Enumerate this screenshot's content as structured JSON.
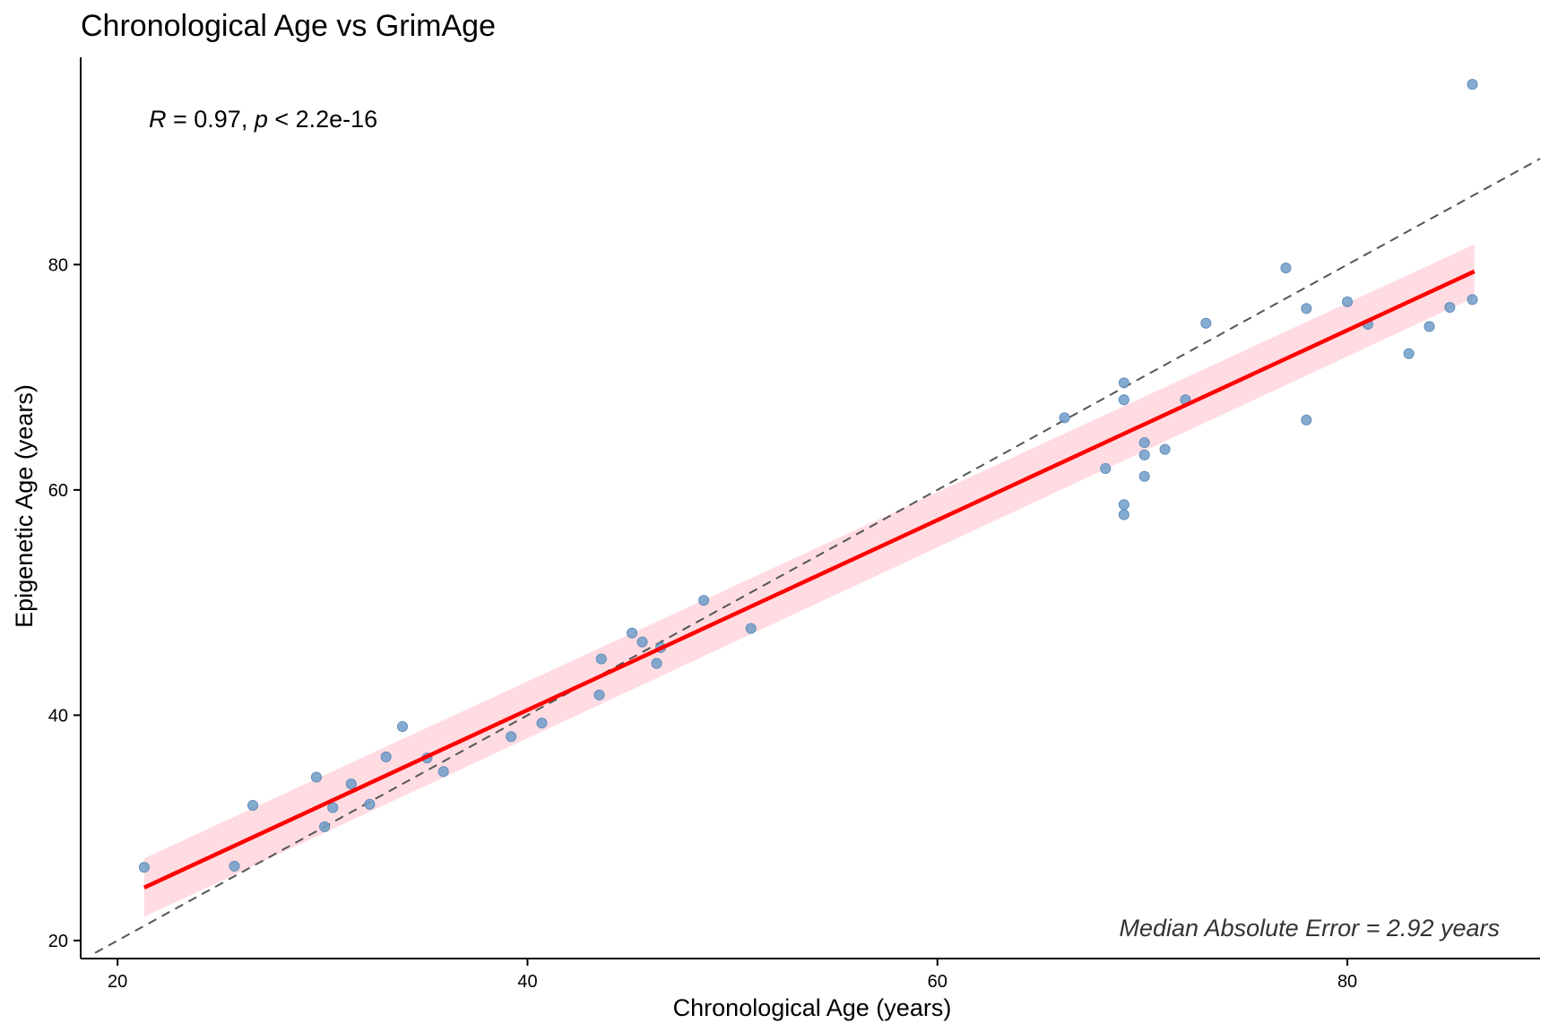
{
  "chart_data": {
    "type": "scatter",
    "title": "Chronological Age vs GrimAge",
    "xlabel": "Chronological Age (years)",
    "ylabel": "Epigenetic Age (years)",
    "xlim": [
      18.2,
      89.4
    ],
    "ylim": [
      18.4,
      98.4
    ],
    "xticks": [
      20,
      40,
      60,
      80
    ],
    "yticks": [
      20,
      40,
      60,
      80
    ],
    "grid": false,
    "legend": "none",
    "colors": {
      "points": "#6f9cc8",
      "regression": "#ff0000",
      "confidence_band": "#ffc0cb",
      "identity": "#555555"
    },
    "annotations": {
      "correlation": {
        "r_label": "R",
        "r_text": " = 0.97, ",
        "p_label": "p",
        "p_text": " < 2.2e-16"
      },
      "mae": "Median Absolute Error = 2.92 years"
    },
    "regression_line": {
      "x": [
        21.3,
        86.2
      ],
      "y": [
        24.7,
        79.4
      ]
    },
    "confidence_band": {
      "x": [
        21.3,
        86.2
      ],
      "upper": [
        27.3,
        81.8
      ],
      "lower": [
        22.1,
        77.1
      ]
    },
    "identity_line": {
      "x": [
        18.9,
        89.4
      ],
      "y": [
        18.9,
        89.4
      ]
    },
    "points": [
      {
        "x": 21.3,
        "y": 26.5
      },
      {
        "x": 25.7,
        "y": 26.6
      },
      {
        "x": 26.6,
        "y": 32.0
      },
      {
        "x": 29.7,
        "y": 34.5
      },
      {
        "x": 30.1,
        "y": 30.1
      },
      {
        "x": 30.5,
        "y": 31.8
      },
      {
        "x": 31.4,
        "y": 33.9
      },
      {
        "x": 32.3,
        "y": 32.1
      },
      {
        "x": 33.1,
        "y": 36.3
      },
      {
        "x": 33.9,
        "y": 39.0
      },
      {
        "x": 35.1,
        "y": 36.2
      },
      {
        "x": 35.9,
        "y": 35.0
      },
      {
        "x": 39.2,
        "y": 38.1
      },
      {
        "x": 40.7,
        "y": 39.3
      },
      {
        "x": 43.5,
        "y": 41.8
      },
      {
        "x": 43.6,
        "y": 45.0
      },
      {
        "x": 45.1,
        "y": 47.3
      },
      {
        "x": 45.6,
        "y": 46.5
      },
      {
        "x": 46.3,
        "y": 44.6
      },
      {
        "x": 46.5,
        "y": 46.0
      },
      {
        "x": 48.6,
        "y": 50.2
      },
      {
        "x": 50.9,
        "y": 47.7
      },
      {
        "x": 66.2,
        "y": 66.4
      },
      {
        "x": 68.2,
        "y": 61.9
      },
      {
        "x": 69.1,
        "y": 69.5
      },
      {
        "x": 69.1,
        "y": 68.0
      },
      {
        "x": 69.1,
        "y": 58.7
      },
      {
        "x": 69.1,
        "y": 57.8
      },
      {
        "x": 70.1,
        "y": 64.2
      },
      {
        "x": 70.1,
        "y": 63.1
      },
      {
        "x": 70.1,
        "y": 61.2
      },
      {
        "x": 71.1,
        "y": 63.6
      },
      {
        "x": 72.1,
        "y": 68.0
      },
      {
        "x": 73.1,
        "y": 74.8
      },
      {
        "x": 77.0,
        "y": 79.7
      },
      {
        "x": 78.0,
        "y": 76.1
      },
      {
        "x": 78.0,
        "y": 66.2
      },
      {
        "x": 80.0,
        "y": 76.7
      },
      {
        "x": 81.0,
        "y": 74.7
      },
      {
        "x": 83.0,
        "y": 72.1
      },
      {
        "x": 84.0,
        "y": 74.5
      },
      {
        "x": 85.0,
        "y": 76.2
      },
      {
        "x": 86.1,
        "y": 96.0
      },
      {
        "x": 86.1,
        "y": 76.9
      }
    ]
  }
}
